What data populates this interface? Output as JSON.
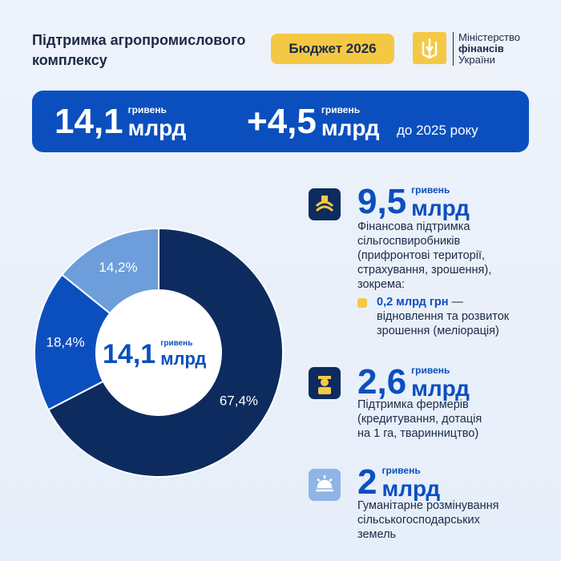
{
  "header": {
    "title": "Підтримка агропромислового комплексу",
    "badge": "Бюджет 2026",
    "ministry": [
      "Міністерство",
      "фінансів",
      "України"
    ]
  },
  "summary": {
    "total": {
      "amount": "14,1",
      "currency": "гривень",
      "unit": "млрд"
    },
    "increase": {
      "amount": "+4,5",
      "currency": "гривень",
      "unit": "млрд",
      "note": "до 2025 року"
    }
  },
  "chart_data": {
    "type": "donut",
    "values": [
      67.4,
      18.4,
      14.2
    ],
    "value_labels": [
      "67,4%",
      "18,4%",
      "14,2%"
    ],
    "colors": [
      "#0d2b5e",
      "#0b4fbf",
      "#6d9ddb"
    ],
    "center": {
      "amount": "14,1",
      "currency": "гривень",
      "unit": "млрд"
    }
  },
  "items": [
    {
      "amount": "9,5",
      "currency": "гривень",
      "unit": "млрд",
      "description": [
        "Фінансова підтримка",
        "сільгоспвиробників",
        "(прифронтові території,",
        "страхування, зрошення),",
        "зокрема:"
      ],
      "sub": {
        "amount": "0,2 млрд грн",
        "text": [
          "— ",
          "відновлення та розвиток",
          "зрошення (меліорація)"
        ]
      }
    },
    {
      "amount": "2,6",
      "currency": "гривень",
      "unit": "млрд",
      "description": [
        "Підтримка фермерів",
        "(кредитування, дотація",
        "на 1 га, тваринництво)"
      ]
    },
    {
      "amount": "2",
      "currency": "гривень",
      "unit": "млрд",
      "description": [
        "Гуманітарне розмінування",
        "сільськогосподарських",
        "земель"
      ]
    }
  ]
}
